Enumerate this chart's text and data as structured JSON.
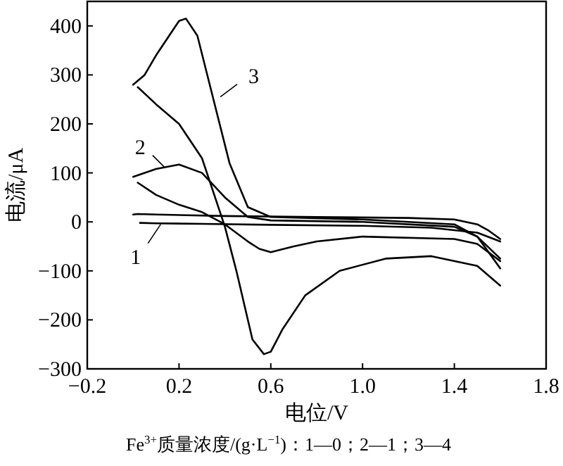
{
  "chart_data": {
    "type": "line",
    "xlabel": "电位/V",
    "ylabel": "电流/μA",
    "xlim": [
      -0.2,
      1.8
    ],
    "ylim": [
      -300,
      450
    ],
    "xticks": [
      -0.2,
      0.2,
      0.6,
      {
        "value": 1,
        "label": "1.0"
      },
      1.4,
      1.8
    ],
    "yticks": [
      -300,
      -200,
      -100,
      0,
      100,
      200,
      300,
      400
    ],
    "grid": false,
    "line_style": "solid",
    "marker": "none",
    "series": [
      {
        "color": "#000000",
        "x": [
          0.0,
          0.02,
          0.1,
          0.4,
          0.8,
          1.2,
          1.4,
          1.5,
          1.55,
          1.6
        ],
        "values": [
          15,
          16,
          15,
          12,
          10,
          8,
          5,
          -5,
          -18,
          -35
        ]
      },
      {
        "color": "#000000",
        "x": [
          1.6,
          1.5,
          1.3,
          1.0,
          0.6,
          0.3,
          0.1,
          0.03
        ],
        "values": [
          -40,
          -22,
          -12,
          -8,
          -6,
          -4,
          -3,
          -2
        ]
      },
      {
        "color": "#000000",
        "x": [
          0.0,
          0.1,
          0.2,
          0.3,
          0.4,
          0.5,
          0.6,
          1.0,
          1.4,
          1.5,
          1.6
        ],
        "values": [
          92,
          108,
          117,
          100,
          50,
          10,
          3,
          0,
          -10,
          -30,
          -75
        ]
      },
      {
        "color": "#000000",
        "x": [
          1.6,
          1.5,
          1.4,
          1.0,
          0.8,
          0.7,
          0.6,
          0.55,
          0.5,
          0.4,
          0.3,
          0.2,
          0.1,
          0.02
        ],
        "values": [
          -80,
          -45,
          -35,
          -30,
          -40,
          -50,
          -62,
          -55,
          -40,
          -5,
          20,
          35,
          55,
          80
        ]
      },
      {
        "color": "#000000",
        "x": [
          0.0,
          0.05,
          0.1,
          0.2,
          0.23,
          0.28,
          0.35,
          0.42,
          0.5,
          0.6,
          1.0,
          1.4,
          1.5,
          1.6
        ],
        "values": [
          280,
          300,
          340,
          410,
          415,
          380,
          250,
          120,
          30,
          10,
          5,
          -5,
          -30,
          -95
        ]
      },
      {
        "color": "#000000",
        "x": [
          1.6,
          1.5,
          1.3,
          1.1,
          0.9,
          0.75,
          0.65,
          0.6,
          0.57,
          0.52,
          0.45,
          0.4,
          0.35,
          0.3,
          0.2,
          0.1,
          0.02
        ],
        "values": [
          -130,
          -90,
          -70,
          -75,
          -100,
          -150,
          -220,
          -265,
          -270,
          -240,
          -100,
          -10,
          60,
          130,
          200,
          240,
          275
        ]
      }
    ],
    "annotations": [
      {
        "text": "1",
        "x": 0.12,
        "y": -5
      },
      {
        "text": "2",
        "x": 0.14,
        "y": 110
      },
      {
        "text": "3",
        "x": 0.38,
        "y": 255
      },
      "Fe$^{3+}$质量浓度/(g·L$^{−1}$)：1—0；2—1；3—4"
    ]
  }
}
